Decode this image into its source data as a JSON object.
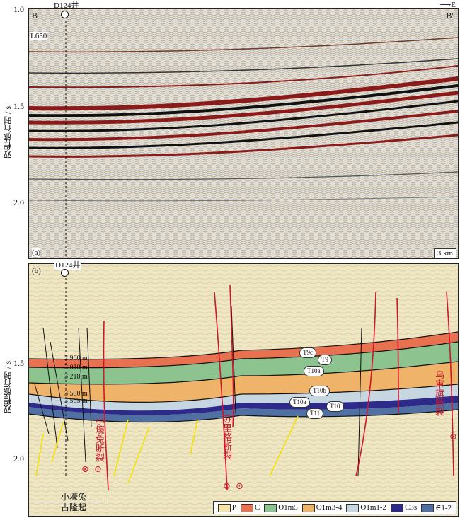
{
  "axis_label": "双程旅行时 / s",
  "panel_a": {
    "tag": "(a)",
    "well": "D124井",
    "left_mark": "B",
    "right_mark": "B′",
    "line": "L650",
    "east": "E",
    "scale": "3 km",
    "ticks": [
      "1.0",
      "1.5",
      "2.0"
    ]
  },
  "panel_b": {
    "tag": "(b)",
    "well": "D124井",
    "ticks": [
      "1.5",
      "2.0"
    ],
    "depths": [
      "2 960 m",
      "3 010 m",
      "3 218 m",
      "3 500 m",
      "3 565 m"
    ],
    "horizons": [
      "T9c",
      "T9",
      "T10a",
      "T10b",
      "T10a",
      "T10",
      "T11"
    ],
    "faults": [
      "小壕兔断裂",
      "苏里格断裂",
      "乌审旗断裂"
    ],
    "region": [
      "小壕兔",
      "古隆起"
    ],
    "legend": [
      {
        "label": "P",
        "color": "#f3e6a6"
      },
      {
        "label": "C",
        "color": "#e8714f"
      },
      {
        "label": "O1m5",
        "color": "#8cc38f"
      },
      {
        "label": "O1m3-4",
        "color": "#f0b36a"
      },
      {
        "label": "O1m1-2",
        "color": "#c7d7e2"
      },
      {
        "label": "C3s",
        "color": "#2e2a8a"
      },
      {
        "label": "∈1-2",
        "color": "#5070a3"
      }
    ]
  }
}
